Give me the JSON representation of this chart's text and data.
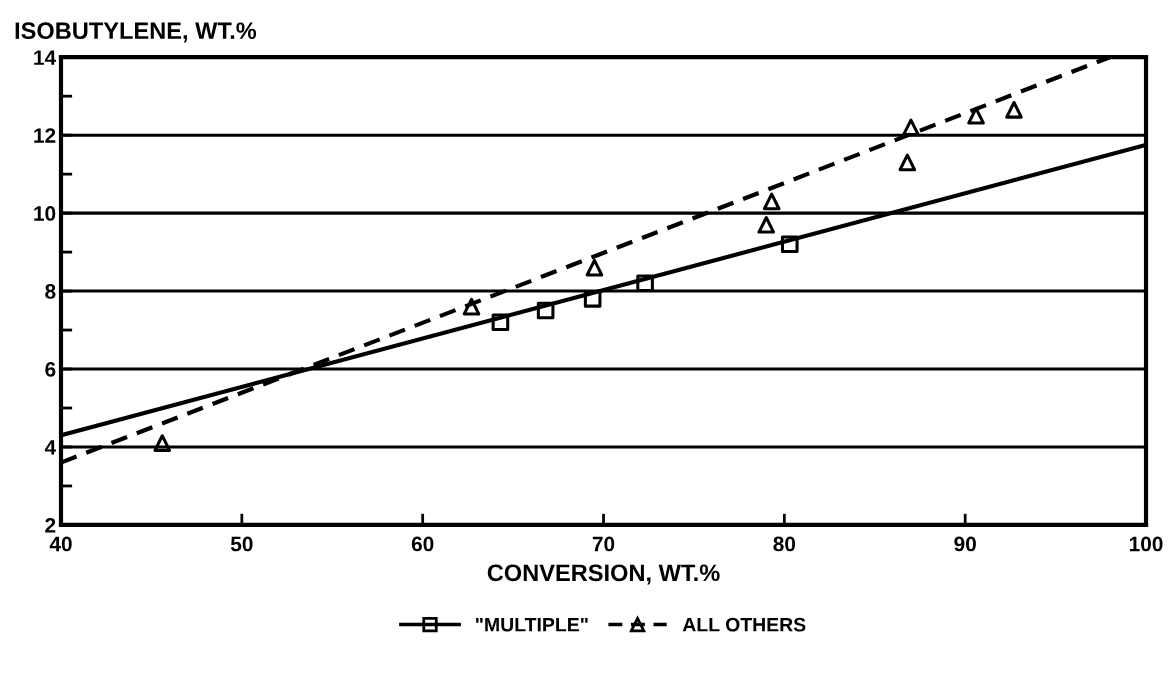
{
  "chart_data": {
    "type": "scatter",
    "ylabel": "ISOBUTYLENE, WT.%",
    "xlabel": "CONVERSION, WT.%",
    "xlim": [
      40,
      100
    ],
    "xticks": [
      40,
      50,
      60,
      70,
      80,
      90,
      100
    ],
    "ylim": [
      2,
      14
    ],
    "yticks": [
      2,
      {
        "value": 3,
        "label": null
      },
      4,
      {
        "value": 5,
        "label": null
      },
      6,
      {
        "value": 7,
        "label": null
      },
      8,
      {
        "value": 9,
        "label": null
      },
      10,
      {
        "value": 11,
        "label": null
      },
      12,
      {
        "value": 13,
        "label": null
      },
      14
    ],
    "grid": "y",
    "legend": "bottom",
    "series": [
      {
        "name": "\"MULTIPLE\"",
        "marker": "square",
        "line_style": "solid",
        "color": "#000000",
        "x": [
          64.3,
          66.8,
          69.4,
          72.3,
          80.3
        ],
        "values": [
          7.2,
          7.5,
          7.8,
          8.2,
          9.2
        ]
      },
      {
        "name": "ALL OTHERS",
        "marker": "triangle",
        "line_style": "dashed",
        "color": "#000000",
        "x": [
          45.6,
          62.7,
          69.5,
          79.0,
          79.3,
          86.8,
          87.0,
          90.6,
          92.7
        ],
        "values": [
          4.1,
          7.6,
          8.6,
          9.7,
          10.3,
          11.3,
          12.2,
          12.5,
          12.65
        ]
      },
      {
        "type": "line",
        "line_style": "solid",
        "color": "#000000",
        "x": [
          40,
          100
        ],
        "values": [
          4.3,
          11.75
        ]
      },
      {
        "type": "line",
        "line_style": "dashed",
        "color": "#000000",
        "x": [
          40,
          98
        ],
        "values": [
          3.6,
          14
        ]
      }
    ]
  }
}
